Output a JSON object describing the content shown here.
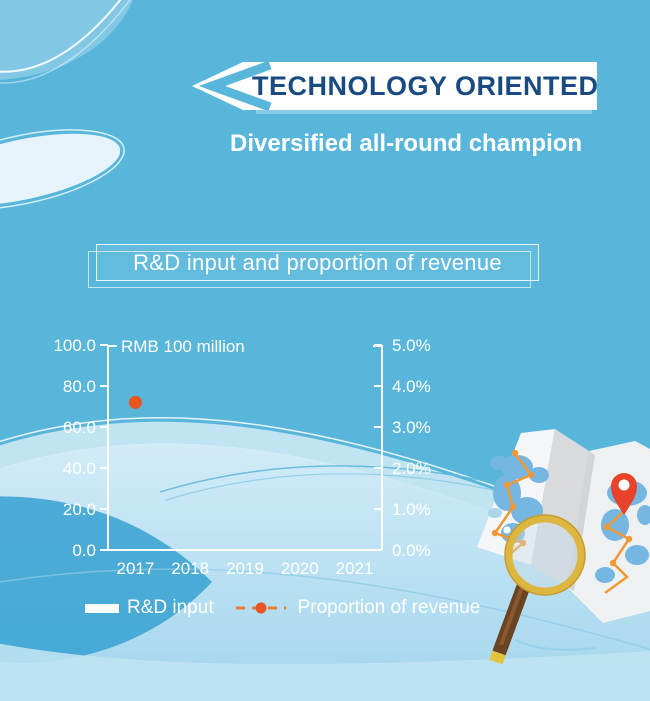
{
  "header": {
    "banner_title": "TECHNOLOGY ORIENTED",
    "subtitle": "Diversified all-round champion"
  },
  "chart_box": {
    "title": "R&D input and proportion of revenue"
  },
  "chart_data": {
    "type": "combo-bar-line",
    "title": "R&D input and proportion of revenue",
    "categories": [
      "2017",
      "2018",
      "2019",
      "2020",
      "2021"
    ],
    "left_axis": {
      "label": "RMB 100 million",
      "min": 0,
      "max": 100,
      "ticks": [
        "100.0",
        "80.0",
        "60.0",
        "40.0",
        "20.0",
        "0.0"
      ]
    },
    "right_axis": {
      "min_percent": 0,
      "max_percent": 5,
      "ticks": [
        "5.0%",
        "4.0%",
        "3.0%",
        "2.0%",
        "1.0%",
        "0.0%"
      ]
    },
    "series": [
      {
        "name": "R&D input",
        "type": "bar",
        "color": "#ffffff",
        "values": []
      },
      {
        "name": "Proportion of revenue",
        "type": "line",
        "color": "#e9561d",
        "points": [
          {
            "category": "2017",
            "value_percent": 3.6
          }
        ]
      }
    ],
    "grid": false,
    "legend_position": "bottom"
  },
  "colors": {
    "background": "#58b6db",
    "accent_navy": "#1a4b80",
    "accent_orange": "#e9561d",
    "legend_dash_orange": "#ec7c30",
    "text_light": "#ffffff"
  },
  "illustration": {
    "description": "folded map with orange route, red location pin and magnifying glass"
  }
}
